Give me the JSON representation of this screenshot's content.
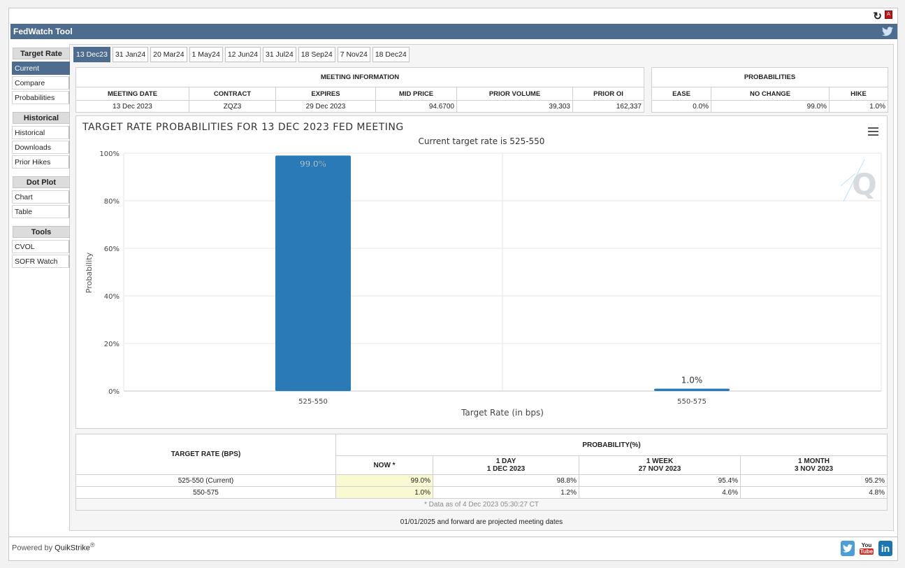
{
  "app": {
    "title": "FedWatch Tool"
  },
  "sidebar": {
    "sections": [
      {
        "heading": "Target Rate",
        "items": [
          "Current",
          "Compare",
          "Probabilities"
        ]
      },
      {
        "heading": "Historical",
        "items": [
          "Historical",
          "Downloads",
          "Prior Hikes"
        ]
      },
      {
        "heading": "Dot Plot",
        "items": [
          "Chart",
          "Table"
        ]
      },
      {
        "heading": "Tools",
        "items": [
          "CVOL",
          "SOFR Watch"
        ]
      }
    ],
    "active": "Current"
  },
  "tabs": [
    "13 Dec23",
    "31 Jan24",
    "20 Mar24",
    "1 May24",
    "12 Jun24",
    "31 Jul24",
    "18 Sep24",
    "7 Nov24",
    "18 Dec24"
  ],
  "meeting_info": {
    "title": "MEETING INFORMATION",
    "headers": [
      "MEETING DATE",
      "CONTRACT",
      "EXPIRES",
      "MID PRICE",
      "PRIOR VOLUME",
      "PRIOR OI"
    ],
    "values": [
      "13 Dec 2023",
      "ZQZ3",
      "29 Dec 2023",
      "94.6700",
      "39,303",
      "162,337"
    ]
  },
  "probabilities": {
    "title": "PROBABILITIES",
    "headers": [
      "EASE",
      "NO CHANGE",
      "HIKE"
    ],
    "values": [
      "0.0%",
      "99.0%",
      "1.0%"
    ]
  },
  "chart_data": {
    "type": "bar",
    "title": "TARGET RATE PROBABILITIES FOR 13 DEC 2023 FED MEETING",
    "subtitle": "Current target rate is 525-550",
    "categories": [
      "525-550",
      "550-575"
    ],
    "values": [
      99.0,
      1.0
    ],
    "data_labels": [
      "99.0%",
      "1.0%"
    ],
    "xlabel": "Target Rate (in bps)",
    "ylabel": "Probability",
    "ylim": [
      0,
      100
    ],
    "yticks": [
      "0%",
      "20%",
      "40%",
      "60%",
      "80%",
      "100%"
    ],
    "grid": true,
    "bar_color": "#2a7ab7"
  },
  "prob_table": {
    "col_target": "TARGET RATE (BPS)",
    "col_group": "PROBABILITY(%)",
    "col_now": "NOW *",
    "col_day_1": "1 DAY",
    "col_day_2": "1 DEC 2023",
    "col_week_1": "1 WEEK",
    "col_week_2": "27 NOV 2023",
    "col_month_1": "1 MONTH",
    "col_month_2": "3 NOV 2023",
    "rows": [
      {
        "rate": "525-550 (Current)",
        "now": "99.0%",
        "day": "98.8%",
        "week": "95.4%",
        "month": "95.2%"
      },
      {
        "rate": "550-575",
        "now": "1.0%",
        "day": "1.2%",
        "week": "4.6%",
        "month": "4.8%"
      }
    ],
    "note": "* Data as of 4 Dec 2023 05:30:27 CT"
  },
  "footer": {
    "projected_note": "01/01/2025 and forward are projected meeting dates",
    "powered_by": "Powered by",
    "brand": "QuikStrike",
    "reg": "®"
  },
  "icons": {
    "twitter_color": "#4a9fd8",
    "youtube_color": "#d32b25",
    "linkedin_color": "#1a75b0",
    "youtube_top": "You",
    "youtube_bottom": "Tube",
    "linkedin_text": "in",
    "pdf_text": "A"
  }
}
